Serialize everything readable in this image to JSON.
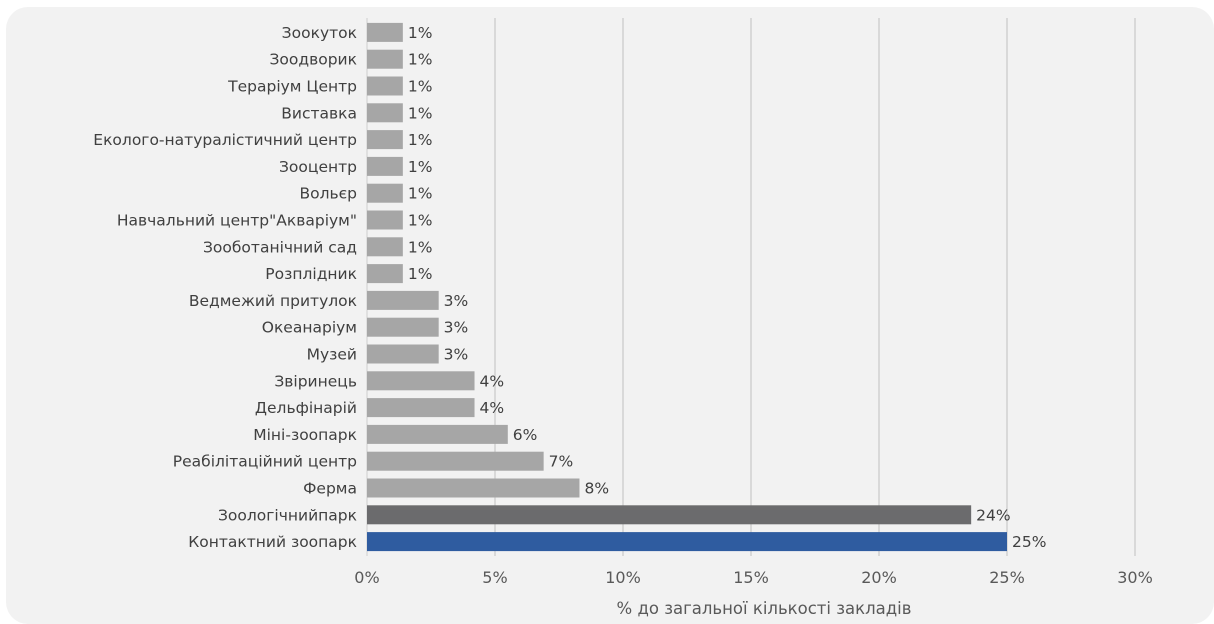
{
  "chart_data": {
    "type": "bar",
    "orientation": "horizontal",
    "categories": [
      "Зоокуток",
      "Зоодворик",
      "Тераріум Центр",
      "Виставка",
      "Еколого-натуралістичний центр",
      "Зооцентр",
      "Вольєр",
      "Навчальний центр\"Акваріум\"",
      "Зооботанічний сад",
      "Розплідник",
      "Ведмежий притулок",
      "Океанаріум",
      "Музей",
      "Звіринець",
      "Дельфінарій",
      "Міні-зоопарк",
      "Реабілітаційний центр",
      "Ферма",
      "Зоологічнийпарк",
      "Контактний зоопарк"
    ],
    "values": [
      1.4,
      1.4,
      1.4,
      1.4,
      1.4,
      1.4,
      1.4,
      1.4,
      1.4,
      1.4,
      2.8,
      2.8,
      2.8,
      4.2,
      4.2,
      5.5,
      6.9,
      8.3,
      23.6,
      25.0
    ],
    "data_labels": [
      "1%",
      "1%",
      "1%",
      "1%",
      "1%",
      "1%",
      "1%",
      "1%",
      "1%",
      "1%",
      "3%",
      "3%",
      "3%",
      "4%",
      "4%",
      "6%",
      "7%",
      "8%",
      "24%",
      "25%"
    ],
    "colors": [
      "#a6a6a6",
      "#a6a6a6",
      "#a6a6a6",
      "#a6a6a6",
      "#a6a6a6",
      "#a6a6a6",
      "#a6a6a6",
      "#a6a6a6",
      "#a6a6a6",
      "#a6a6a6",
      "#a6a6a6",
      "#a6a6a6",
      "#a6a6a6",
      "#a6a6a6",
      "#a6a6a6",
      "#a6a6a6",
      "#a6a6a6",
      "#a6a6a6",
      "#6b6b6d",
      "#2f5ca0"
    ],
    "title": "",
    "xlabel": "% до загальної кількості закладів",
    "ylabel": "",
    "xlim": [
      0,
      30
    ],
    "xticks": [
      0,
      5,
      10,
      15,
      20,
      25,
      30
    ],
    "xtick_labels": [
      "0%",
      "5%",
      "10%",
      "15%",
      "20%",
      "25%",
      "30%"
    ],
    "grid": "vertical",
    "legend": "none"
  },
  "colors": {
    "background": "#f2f2f2",
    "grid": "#d9d9d9",
    "default_bar": "#a6a6a6",
    "highlight_dark": "#6b6b6d",
    "highlight_blue": "#2f5ca0"
  }
}
